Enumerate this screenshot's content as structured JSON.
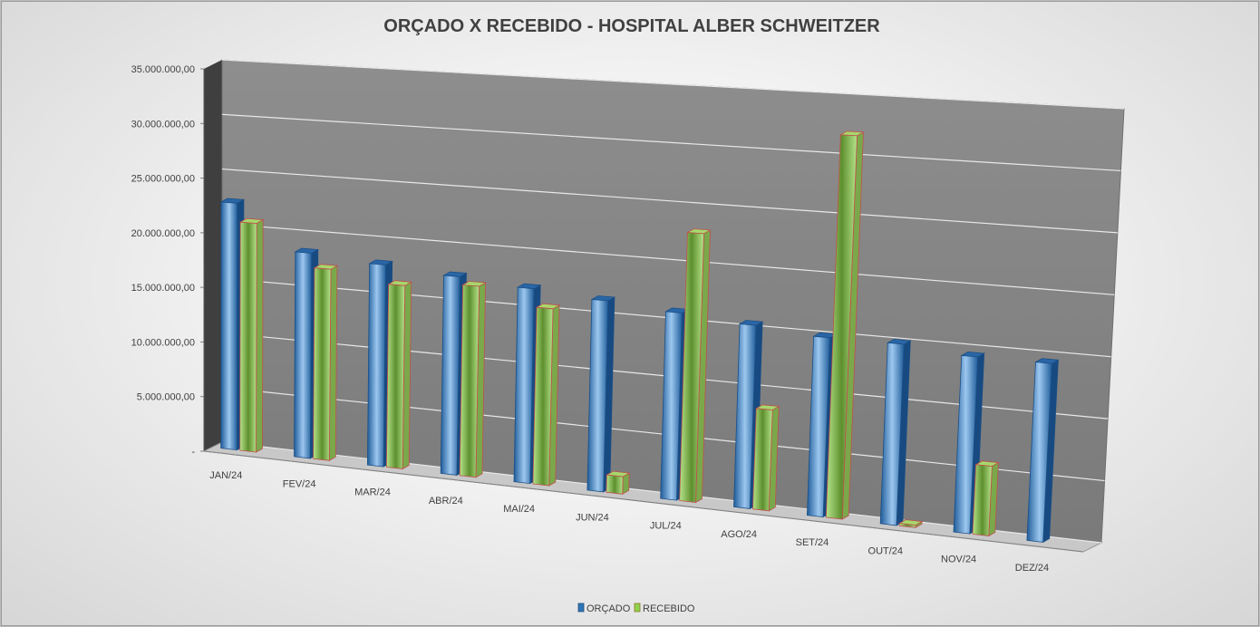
{
  "chart_data": {
    "type": "bar",
    "title": "ORÇADO X RECEBIDO - HOSPITAL ALBER SCHWEITZER",
    "categories": [
      "JAN/24",
      "FEV/24",
      "MAR/24",
      "ABR/24",
      "MAI/24",
      "JUN/24",
      "JUL/24",
      "AGO/24",
      "SET/24",
      "OUT/24",
      "NOV/24",
      "DEZ/24"
    ],
    "series": [
      {
        "name": "ORÇADO",
        "color": "#2e75b6",
        "values": [
          22500000,
          18500000,
          18000000,
          17500000,
          17000000,
          16500000,
          16000000,
          15500000,
          15000000,
          15000000,
          14500000,
          14500000
        ]
      },
      {
        "name": "RECEBIDO",
        "color": "#92d050",
        "values": [
          20800000,
          17200000,
          16300000,
          16800000,
          15400000,
          1500000,
          22900000,
          8500000,
          32000000,
          200000,
          5700000,
          null
        ]
      }
    ],
    "ylim": [
      0,
      35000000
    ],
    "yticks": [
      "-",
      "5.000.000,00",
      "10.000.000,00",
      "15.000.000,00",
      "20.000.000,00",
      "25.000.000,00",
      "30.000.000,00",
      "35.000.000,00"
    ],
    "grid": true,
    "legend_position": "bottom",
    "style": "3d-perspective"
  }
}
